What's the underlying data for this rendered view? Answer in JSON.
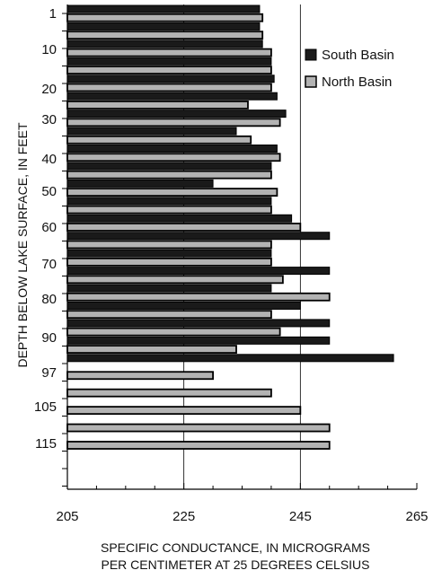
{
  "chart_data": {
    "type": "bar",
    "orientation": "horizontal",
    "xlabel_lines": [
      "SPECIFIC CONDUCTANCE, IN MICROGRAMS",
      "PER CENTIMETER AT 25 DEGREES CELSIUS"
    ],
    "ylabel": "DEPTH BELOW LAKE SURFACE, IN FEET",
    "xlim": [
      205,
      265
    ],
    "x_ticks": [
      "205",
      "225",
      "245",
      "265"
    ],
    "y_tick_labels": [
      "1",
      "10",
      "20",
      "30",
      "40",
      "50",
      "60",
      "70",
      "80",
      "90",
      "97",
      "105",
      "115"
    ],
    "grid": "vertical lines at 225 and 245",
    "legend": {
      "placement": "top-right",
      "entries": [
        "South Basin",
        "North Basin"
      ]
    },
    "series": [
      {
        "name": "South Basin",
        "color": "#1a1a1a",
        "bars": [
          {
            "row": 1,
            "value": 238
          },
          {
            "row": 3,
            "value": 238
          },
          {
            "row": 5,
            "value": 238.5
          },
          {
            "row": 7,
            "value": 240
          },
          {
            "row": 9,
            "value": 240.5
          },
          {
            "row": 11,
            "value": 241
          },
          {
            "row": 13,
            "value": 242.5
          },
          {
            "row": 15,
            "value": 234
          },
          {
            "row": 17,
            "value": 241
          },
          {
            "row": 19,
            "value": 240
          },
          {
            "row": 21,
            "value": 230
          },
          {
            "row": 23,
            "value": 240
          },
          {
            "row": 25,
            "value": 243.5
          },
          {
            "row": 27,
            "value": 250
          },
          {
            "row": 29,
            "value": 240
          },
          {
            "row": 31,
            "value": 250
          },
          {
            "row": 33,
            "value": 240
          },
          {
            "row": 35,
            "value": 245
          },
          {
            "row": 37,
            "value": 250
          },
          {
            "row": 39,
            "value": 250
          },
          {
            "row": 41,
            "value": 261
          }
        ]
      },
      {
        "name": "North Basin",
        "color": "#b3b3b3",
        "bars": [
          {
            "row": 2,
            "value": 238.5
          },
          {
            "row": 4,
            "value": 238.5
          },
          {
            "row": 6,
            "value": 240
          },
          {
            "row": 8,
            "value": 240
          },
          {
            "row": 10,
            "value": 240
          },
          {
            "row": 12,
            "value": 236
          },
          {
            "row": 14,
            "value": 241.5
          },
          {
            "row": 16,
            "value": 236.5
          },
          {
            "row": 18,
            "value": 241.5
          },
          {
            "row": 20,
            "value": 240
          },
          {
            "row": 22,
            "value": 241
          },
          {
            "row": 24,
            "value": 240
          },
          {
            "row": 26,
            "value": 245
          },
          {
            "row": 28,
            "value": 240
          },
          {
            "row": 30,
            "value": 240
          },
          {
            "row": 32,
            "value": 242
          },
          {
            "row": 34,
            "value": 250
          },
          {
            "row": 36,
            "value": 240
          },
          {
            "row": 38,
            "value": 241.5
          },
          {
            "row": 40,
            "value": 234
          },
          {
            "row": 43,
            "value": 230
          },
          {
            "row": 45,
            "value": 240
          },
          {
            "row": 47,
            "value": 245
          },
          {
            "row": 49,
            "value": 250
          },
          {
            "row": 51,
            "value": 250
          }
        ]
      }
    ]
  }
}
